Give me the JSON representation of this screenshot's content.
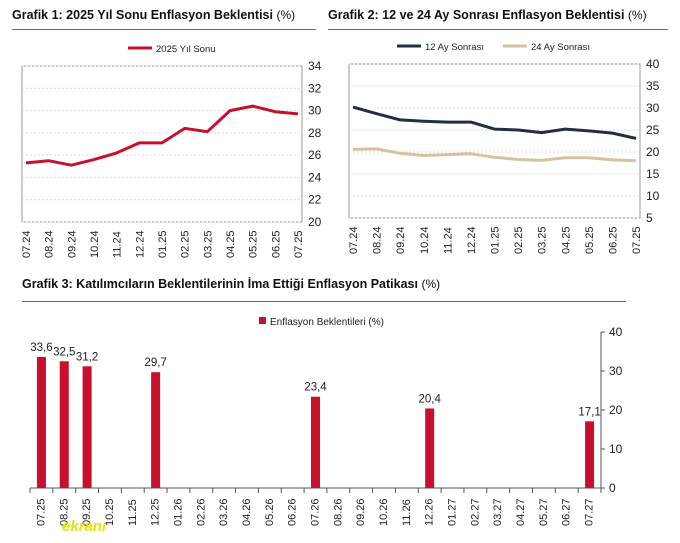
{
  "titles": {
    "g1_bold": "Grafik 1: 2025 Yıl Sonu Enflasyon Beklentisi",
    "g1_unit": "(%)",
    "g2_bold": "Grafik 2: 12 ve 24 Ay Sonrası Enflasyon Beklentisi",
    "g2_unit": "(%)",
    "g3_bold": "Grafik 3: Katılımcıların Beklentilerinin İma Ettiği Enflasyon Patikası",
    "g3_unit": "(%)"
  },
  "logo_text": "ekranı",
  "colors": {
    "red": "#c8102e",
    "navy": "#1f2f44",
    "tan": "#d7c29f"
  },
  "chart_data": [
    {
      "type": "line",
      "x": [
        "07.24",
        "08.24",
        "09.24",
        "10.24",
        "11.24",
        "12.24",
        "01.25",
        "02.25",
        "03.25",
        "04.25",
        "05.25",
        "06.25",
        "07.25"
      ],
      "series": [
        {
          "name": "2025 Yıl Sonu",
          "values": [
            25.3,
            25.5,
            25.1,
            25.6,
            26.2,
            27.1,
            27.1,
            28.4,
            28.1,
            30.0,
            30.4,
            29.9,
            29.7
          ]
        }
      ],
      "ylim": [
        20,
        34
      ],
      "yticks": [
        20,
        22,
        24,
        26,
        28,
        30,
        32,
        34
      ],
      "yaxis_side": "right",
      "grid": true,
      "legend": "top"
    },
    {
      "type": "line",
      "x": [
        "07.24",
        "08.24",
        "09.24",
        "10.24",
        "11.24",
        "12.24",
        "01.25",
        "02.25",
        "03.25",
        "04.25",
        "05.25",
        "06.25",
        "07.25"
      ],
      "series": [
        {
          "name": "12 Ay Sonrası",
          "values": [
            30.2,
            28.7,
            27.3,
            27.0,
            26.8,
            26.8,
            25.2,
            25.0,
            24.4,
            25.2,
            24.8,
            24.3,
            23.1
          ]
        },
        {
          "name": "24 Ay Sonrası",
          "values": [
            20.6,
            20.7,
            19.7,
            19.2,
            19.4,
            19.6,
            18.8,
            18.3,
            18.1,
            18.7,
            18.7,
            18.2,
            18.0
          ]
        }
      ],
      "ylim": [
        5,
        40
      ],
      "yticks": [
        5,
        10,
        15,
        20,
        25,
        30,
        35,
        40
      ],
      "yaxis_side": "right",
      "grid": true,
      "legend": "top"
    },
    {
      "type": "bar",
      "categories": [
        "07.25",
        "08.25",
        "09.25",
        "10.25",
        "11.25",
        "12.25",
        "01.26",
        "02.26",
        "03.26",
        "04.26",
        "05.26",
        "06.26",
        "07.26",
        "08.26",
        "09.26",
        "10.26",
        "11.26",
        "12.26",
        "01.27",
        "02.27",
        "03.27",
        "04.27",
        "05.27",
        "06.27",
        "07.27"
      ],
      "series": [
        {
          "name": "Enflasyon Beklentileri (%)",
          "values": [
            33.6,
            32.5,
            31.2,
            null,
            null,
            29.7,
            null,
            null,
            null,
            null,
            null,
            null,
            23.4,
            null,
            null,
            null,
            null,
            20.4,
            null,
            null,
            null,
            null,
            null,
            null,
            17.1
          ],
          "labels": [
            "33,6",
            "32,5",
            "31,2",
            "",
            "",
            "29,7",
            "",
            "",
            "",
            "",
            "",
            "",
            "23,4",
            "",
            "",
            "",
            "",
            "20,4",
            "",
            "",
            "",
            "",
            "",
            "",
            "17,1"
          ]
        }
      ],
      "ylim": [
        0,
        40
      ],
      "yticks": [
        0,
        10,
        20,
        30,
        40
      ],
      "yaxis_side": "right",
      "grid": false,
      "legend": "top"
    }
  ]
}
